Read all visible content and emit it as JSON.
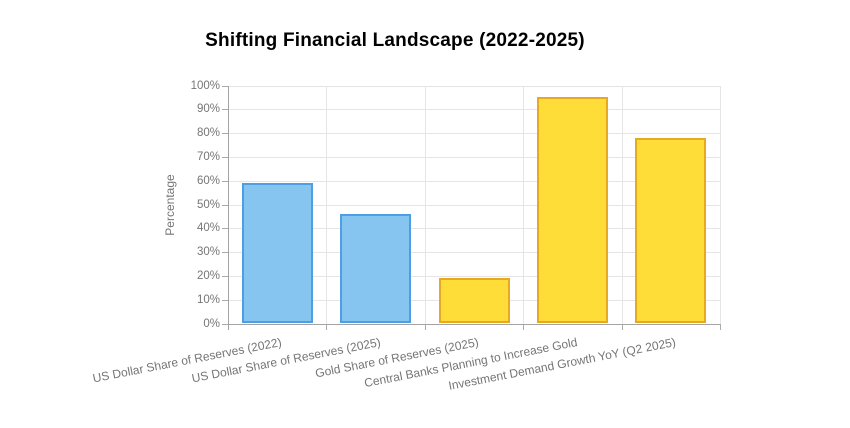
{
  "page": {
    "background": "#FFFFFF"
  },
  "chart_data": {
    "type": "bar",
    "title": "Shifting Financial Landscape (2022-2025)",
    "xlabel": "",
    "ylabel": "Percentage",
    "categories": [
      "US Dollar Share of Reserves (2022)",
      "US Dollar Share of Reserves (2025)",
      "Gold Share of Reserves (2025)",
      "Central Banks Planning to Increase Gold",
      "Investment Demand Growth YoY (Q2 2025)"
    ],
    "values": [
      59,
      46,
      19,
      95,
      78
    ],
    "yticks": [
      "0%",
      "10%",
      "20%",
      "30%",
      "40%",
      "50%",
      "60%",
      "70%",
      "80%",
      "90%",
      "100%"
    ],
    "ylim": [
      0,
      100
    ],
    "ytick_step": 10,
    "grid": true,
    "legend": false,
    "bar_styles": [
      "blue",
      "blue",
      "yellow",
      "yellow",
      "yellow"
    ],
    "colors": {
      "blue_fill": "#85C5F0",
      "blue_border": "#4D9EE2",
      "yellow_fill": "#FFDD38",
      "yellow_border": "#E9A822",
      "grid_line": "#E5E5E5",
      "axis_line": "#A3A3A3",
      "tick_text": "#757575",
      "title_text": "#000000"
    }
  }
}
